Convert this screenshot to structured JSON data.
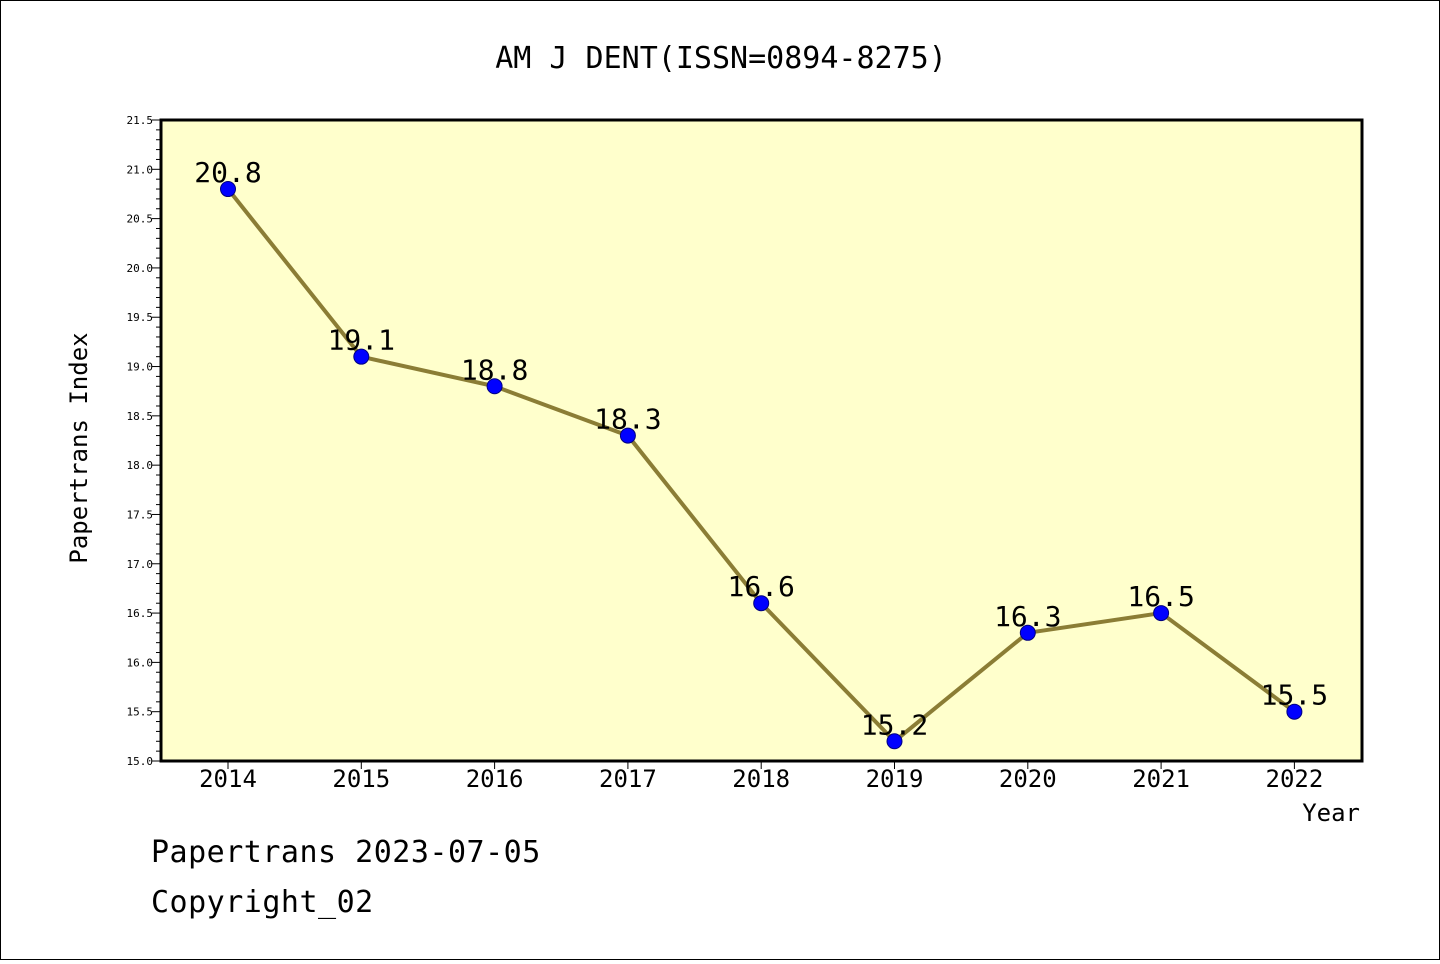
{
  "chart_data": {
    "type": "line",
    "title": "AM J DENT(ISSN=0894-8275)",
    "xlabel": "Year",
    "ylabel": "Papertrans Index",
    "categories": [
      "2014",
      "2015",
      "2016",
      "2017",
      "2018",
      "2019",
      "2020",
      "2021",
      "2022"
    ],
    "values": [
      20.8,
      19.1,
      18.8,
      18.3,
      16.6,
      15.2,
      16.3,
      16.5,
      15.5
    ],
    "data_labels": [
      "20.8",
      "19.1",
      "18.8",
      "18.3",
      "16.6",
      "15.2",
      "16.3",
      "16.5",
      "15.5"
    ],
    "ylim": [
      15.0,
      21.5
    ],
    "yticks": [
      "15.0",
      "15.5",
      "16.0",
      "16.5",
      "17.0",
      "17.5",
      "18.0",
      "18.5",
      "19.0",
      "19.5",
      "20.0",
      "20.5",
      "21.0",
      "21.5"
    ],
    "grid": false,
    "colors": {
      "plot_background": "#ffffcc",
      "line": "#8b7d35",
      "marker": "#0000ff"
    }
  },
  "footer": {
    "line1": "Papertrans 2023-07-05",
    "line2": "Copyright_02"
  }
}
